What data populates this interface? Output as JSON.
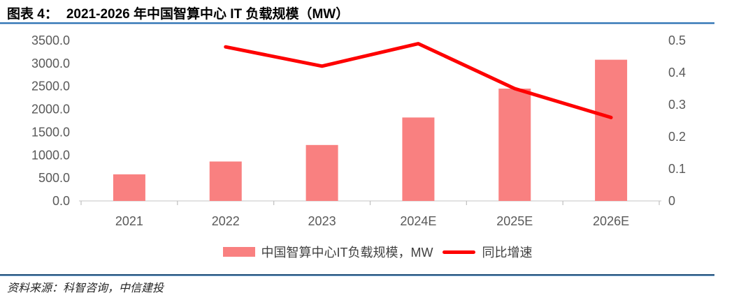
{
  "header": {
    "figure_label": "图表 4：",
    "title": "2021-2026 年中国智算中心 IT 负载规模（MW）"
  },
  "legend": {
    "bar_label": "中国智算中心IT负载规模，MW",
    "line_label": "同比增速"
  },
  "footer": {
    "source": "资料来源：科智咨询，中信建投"
  },
  "colors": {
    "bar": "#f98080",
    "line": "#fe0000",
    "title_underline": "#2e74b5",
    "footer_rule": "#1f4e79",
    "axis_text": "#595959",
    "axis_line": "#d9d9d9",
    "axis_tick": "#bfbfbf"
  },
  "chart_data": {
    "type": "bar",
    "subtype": "bar+line combo, dual axis",
    "title": "2021-2026 年中国智算中心 IT 负载规模（MW）",
    "categories": [
      "2021",
      "2022",
      "2023",
      "2024E",
      "2025E",
      "2026E"
    ],
    "series": [
      {
        "name": "中国智算中心IT负载规模，MW",
        "type": "bar",
        "axis": "left",
        "values": [
          580,
          860,
          1220,
          1820,
          2450,
          3080
        ]
      },
      {
        "name": "同比增速",
        "type": "line",
        "axis": "right",
        "values": [
          null,
          0.48,
          0.42,
          0.49,
          0.35,
          0.26
        ]
      }
    ],
    "left_axis": {
      "min": 0,
      "max": 3500,
      "ticks": [
        "3500.0",
        "3000.0",
        "2500.0",
        "2000.0",
        "1500.0",
        "1000.0",
        "500.0",
        "0.0"
      ]
    },
    "right_axis": {
      "min": 0,
      "max": 0.5,
      "ticks": [
        "0.5",
        "0.4",
        "0.3",
        "0.2",
        "0.1",
        "0"
      ]
    },
    "grid": false,
    "legend_position": "bottom"
  }
}
